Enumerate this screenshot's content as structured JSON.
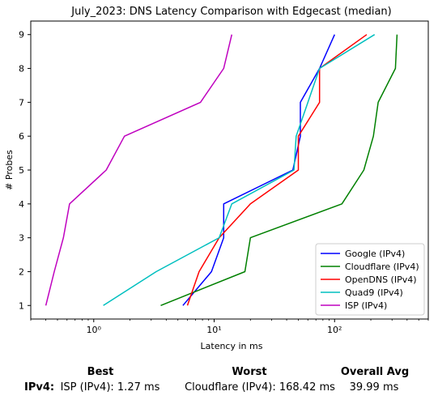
{
  "chart_data": {
    "type": "line",
    "title": "July_2023: DNS Latency Comparison with Edgecast (median)",
    "xlabel": "Latency in ms",
    "ylabel": "# Probes",
    "xscale": "log",
    "xlim": [
      0.3,
      600
    ],
    "ylim": [
      0.6,
      9.4
    ],
    "xticks": [
      1,
      10,
      100
    ],
    "xtick_labels": [
      "10⁰",
      "10¹",
      "10²"
    ],
    "yticks": [
      1,
      2,
      3,
      4,
      5,
      6,
      7,
      8,
      9
    ],
    "grid": false,
    "legend_position": "bottom-right",
    "series": [
      {
        "name": "Google (IPv4)",
        "color": "#0000ff",
        "x": [
          5.5,
          9.5,
          12,
          12,
          45,
          52,
          52,
          75,
          100
        ],
        "y": [
          1,
          2,
          3,
          4,
          5,
          6,
          7,
          8,
          9
        ]
      },
      {
        "name": "Cloudflare (IPv4)",
        "color": "#008000",
        "x": [
          3.6,
          18,
          20,
          115,
          175,
          210,
          230,
          320,
          330
        ],
        "y": [
          1,
          2,
          3,
          4,
          5,
          6,
          7,
          8,
          9
        ]
      },
      {
        "name": "OpenDNS (IPv4)",
        "color": "#ff0000",
        "x": [
          6,
          7.5,
          11,
          20,
          50,
          50,
          75,
          75,
          185
        ],
        "y": [
          1,
          2,
          3,
          4,
          5,
          6,
          7,
          8,
          9
        ]
      },
      {
        "name": "Quad9 (IPv4)",
        "color": "#00bfbf",
        "x": [
          1.2,
          3.3,
          11,
          14,
          46,
          48,
          60,
          75,
          215
        ],
        "y": [
          1,
          2,
          3,
          4,
          5,
          6,
          7,
          8,
          9
        ]
      },
      {
        "name": "ISP (IPv4)",
        "color": "#bf00bf",
        "x": [
          0.4,
          0.47,
          0.56,
          0.63,
          1.27,
          1.8,
          7.7,
          12,
          14
        ],
        "y": [
          1,
          2,
          3,
          4,
          5,
          6,
          7,
          8,
          9
        ]
      }
    ]
  },
  "summary": {
    "best_header": "Best",
    "worst_header": "Worst",
    "avg_header": "Overall Avg",
    "row_label": "IPv4",
    "row_label_suffix": ":",
    "best_value": "ISP (IPv4): 1.27 ms",
    "worst_value": "Cloudflare (IPv4): 168.42 ms",
    "avg_value": "39.99 ms"
  }
}
